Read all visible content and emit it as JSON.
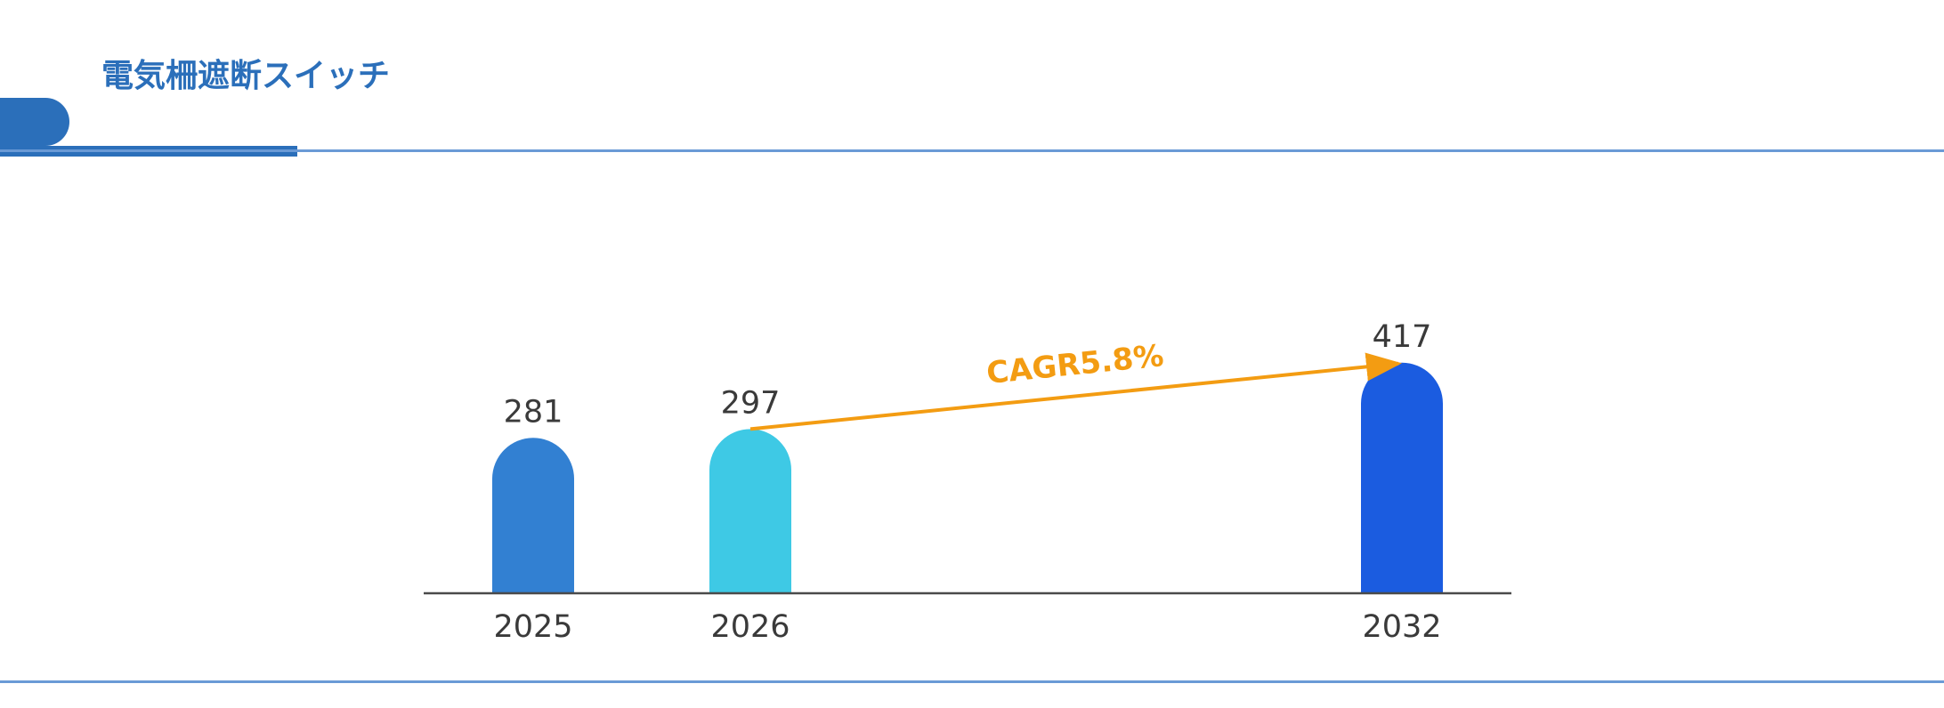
{
  "header": {
    "title": "電気柵遮断スイッチ"
  },
  "chart_data": {
    "type": "bar",
    "categories": [
      "2025",
      "2026",
      "2032"
    ],
    "values": [
      281,
      297,
      417
    ],
    "colors": [
      "#3280d2",
      "#3ec9e5",
      "#1b5ce0"
    ],
    "annotation": {
      "text": "CAGR5.8%",
      "from_category": "2026",
      "to_category": "2032",
      "color": "#f39c12"
    },
    "title": "",
    "xlabel": "",
    "ylabel": "",
    "grid": false,
    "legend": "none"
  }
}
